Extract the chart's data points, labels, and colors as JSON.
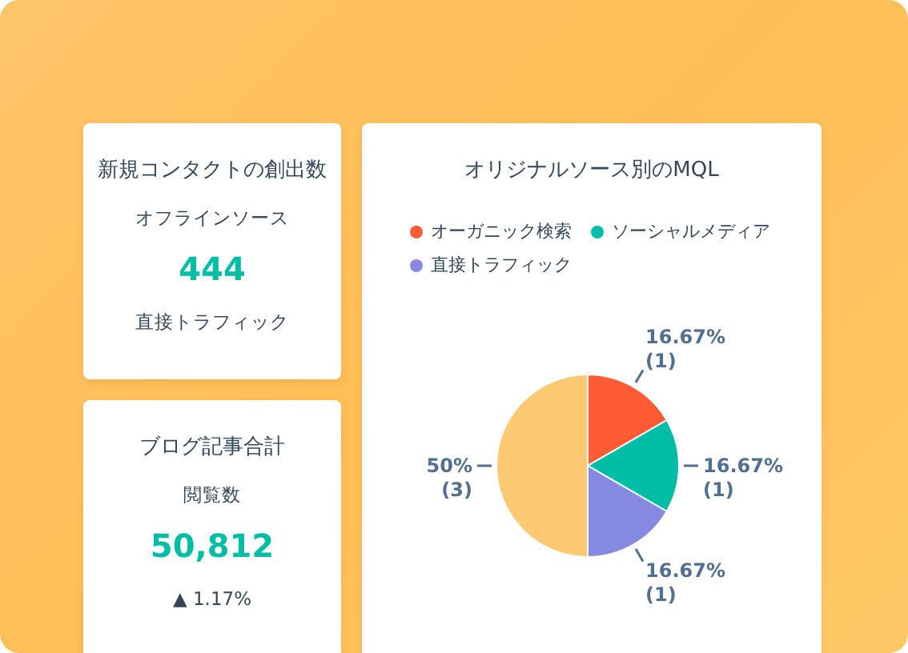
{
  "chart_data": [
    {
      "type": "other",
      "title": "新規コンタクトの創出数",
      "annotations": [
        "オフラインソース",
        "444",
        "直接トラフィック"
      ]
    },
    {
      "type": "other",
      "title": "ブログ記事合計",
      "annotations": [
        "閲覧数",
        "50,812",
        "▲ 1.17%"
      ]
    },
    {
      "type": "pie",
      "title": "オリジナルソース別のMQL",
      "categories": [
        "オーガニック検索",
        "ソーシャルメディア",
        "直接トラフィック",
        null
      ],
      "values": [
        1,
        1,
        1,
        3
      ],
      "colors": [
        "#ff5c35",
        "#00bda5",
        "#8589e0",
        "#fec973"
      ],
      "value_labels": [
        "16.67% (1)",
        "16.67% (1)",
        "16.67% (1)",
        "50% (3)"
      ],
      "legend": "top"
    }
  ]
}
